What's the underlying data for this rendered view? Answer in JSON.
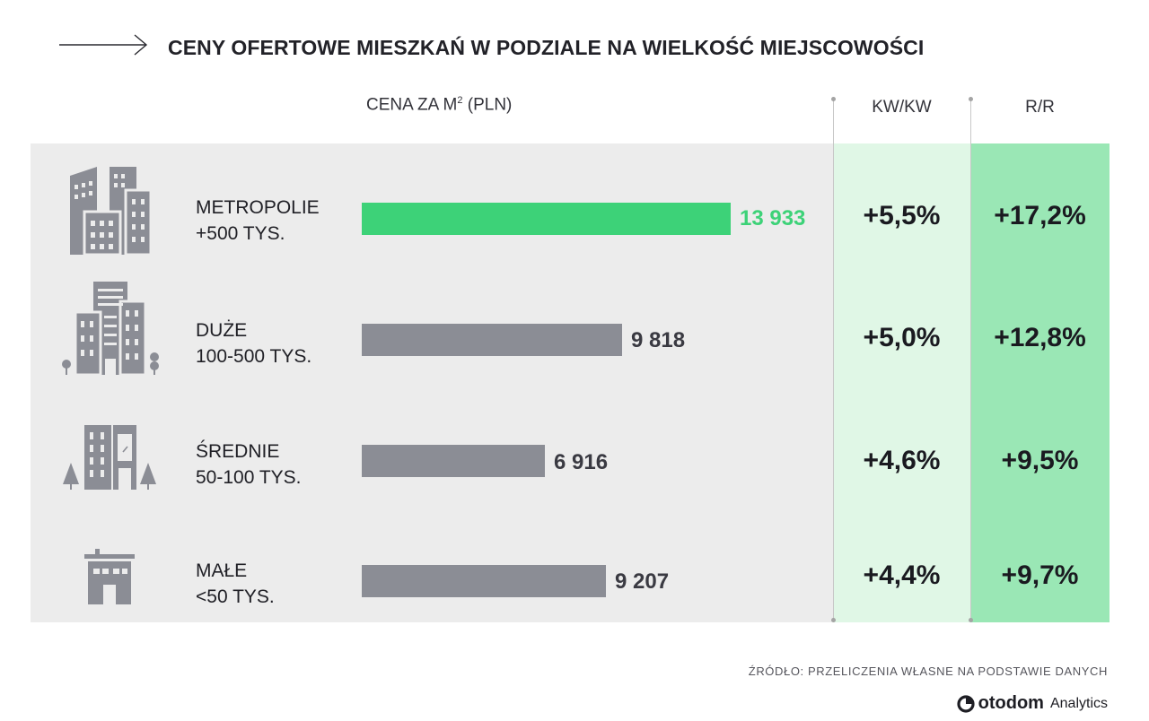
{
  "title": "CENY OFERTOWE MIESZKAŃ W PODZIALE NA WIELKOŚĆ MIEJSCOWOŚCI",
  "headers": {
    "price_prefix": "CENA ZA M",
    "price_sup": "2",
    "price_suffix": " (PLN)",
    "kw": "KW/KW",
    "rr": "R/R"
  },
  "colors": {
    "highlight": "#3dd278",
    "bar": "#8b8d95",
    "kw_column": "#e0f7e6",
    "rr_column": "#9ae7b5",
    "panel": "#ececec"
  },
  "chart_data": {
    "type": "bar",
    "title": "CENY OFERTOWE MIESZKAŃ W PODZIALE NA WIELKOŚĆ MIEJSCOWOŚCI",
    "value_label": "CENA ZA M2 (PLN)",
    "categories": [
      "METROPOLIE +500 TYS.",
      "DUŻE 100-500 TYS.",
      "ŚREDNIE 50-100 TYS.",
      "MAŁE <50 TYS."
    ],
    "values": [
      13933,
      9818,
      6916,
      9207
    ],
    "value_labels": [
      "13 933",
      "9 818",
      "6 916",
      "9 207"
    ],
    "highlight_index": 0,
    "columns": [
      {
        "name": "KW/KW",
        "values": [
          "+5,5%",
          "+5,0%",
          "+4,6%",
          "+4,4%"
        ]
      },
      {
        "name": "R/R",
        "values": [
          "+17,2%",
          "+12,8%",
          "+9,5%",
          "+9,7%"
        ]
      }
    ]
  },
  "rows": [
    {
      "icon": "metropolis-icon",
      "label_line1": "METROPOLIE",
      "label_line2": "+500 TYS.",
      "value_label": "13 933",
      "kw": "+5,5%",
      "rr": "+17,2%"
    },
    {
      "icon": "large-city-icon",
      "label_line1": "DUŻE",
      "label_line2": "100-500 TYS.",
      "value_label": "9 818",
      "kw": "+5,0%",
      "rr": "+12,8%"
    },
    {
      "icon": "medium-town-icon",
      "label_line1": "ŚREDNIE",
      "label_line2": "50-100 TYS.",
      "value_label": "6 916",
      "kw": "+4,6%",
      "rr": "+9,5%"
    },
    {
      "icon": "small-town-icon",
      "label_line1": "MAŁE",
      "label_line2": "<50 TYS.",
      "value_label": "9 207",
      "kw": "+4,4%",
      "rr": "+9,7%"
    }
  ],
  "footer": {
    "source": "ŹRÓDŁO: PRZELICZENIA WŁASNE NA PODSTAWIE DANYCH",
    "brand": "otodom",
    "brand_suffix": "Analytics"
  }
}
